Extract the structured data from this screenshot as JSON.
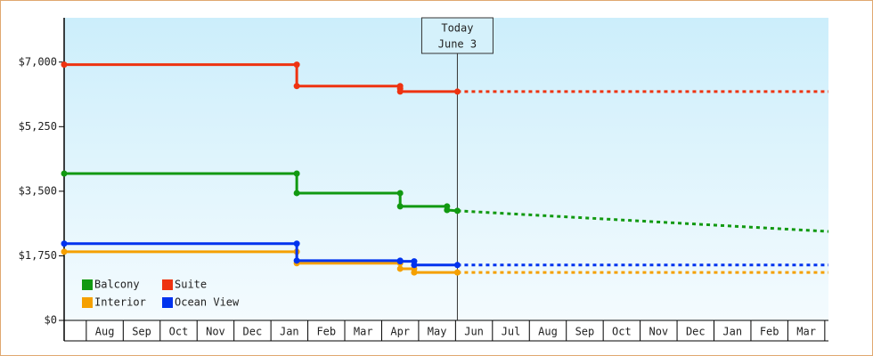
{
  "chart_data": {
    "type": "step-line",
    "series": [
      {
        "name": "Balcony",
        "color": "#119911",
        "x": [
          -0.6,
          5.7,
          5.7,
          8.5,
          8.5,
          9.77,
          9.77,
          10.05
        ],
        "values": [
          3980,
          3980,
          3450,
          3450,
          3090,
          3090,
          2990,
          2970
        ],
        "projection_x": [
          10.05,
          20.1
        ],
        "projection_values": [
          2970,
          2410
        ]
      },
      {
        "name": "Suite",
        "color": "#ee3311",
        "x": [
          -0.6,
          5.7,
          5.7,
          8.5,
          8.5,
          8.5,
          10.05
        ],
        "values": [
          6930,
          6930,
          6350,
          6350,
          6280,
          6200,
          6200
        ],
        "projection_x": [
          10.05,
          20.1
        ],
        "projection_values": [
          6200,
          6200
        ]
      },
      {
        "name": "Interior",
        "color": "#f5a000",
        "x": [
          -0.6,
          5.7,
          5.7,
          8.5,
          8.5,
          8.88,
          8.88,
          10.05
        ],
        "values": [
          1860,
          1860,
          1550,
          1550,
          1400,
          1400,
          1300,
          1300
        ],
        "projection_x": [
          10.05,
          20.1
        ],
        "projection_values": [
          1300,
          1300
        ]
      },
      {
        "name": "Ocean View",
        "color": "#0033ee",
        "x": [
          -0.6,
          5.7,
          5.7,
          8.5,
          8.5,
          8.88,
          8.88,
          10.05
        ],
        "values": [
          2080,
          2080,
          1620,
          1620,
          1600,
          1600,
          1500,
          1500
        ],
        "projection_x": [
          10.05,
          20.1
        ],
        "projection_values": [
          1500,
          1500
        ]
      }
    ],
    "xlim": [
      -0.6,
      20.1
    ],
    "xticks": [
      {
        "value": 0.5,
        "label": "Aug"
      },
      {
        "value": 1.5,
        "label": "Sep"
      },
      {
        "value": 2.5,
        "label": "Oct"
      },
      {
        "value": 3.5,
        "label": "Nov"
      },
      {
        "value": 4.5,
        "label": "Dec"
      },
      {
        "value": 5.5,
        "label": "Jan"
      },
      {
        "value": 6.5,
        "label": "Feb"
      },
      {
        "value": 7.5,
        "label": "Mar"
      },
      {
        "value": 8.5,
        "label": "Apr"
      },
      {
        "value": 9.5,
        "label": "May"
      },
      {
        "value": 10.5,
        "label": "Jun"
      },
      {
        "value": 11.5,
        "label": "Jul"
      },
      {
        "value": 12.5,
        "label": "Aug"
      },
      {
        "value": 13.5,
        "label": "Sep"
      },
      {
        "value": 14.5,
        "label": "Oct"
      },
      {
        "value": 15.5,
        "label": "Nov"
      },
      {
        "value": 16.5,
        "label": "Dec"
      },
      {
        "value": 17.5,
        "label": "Jan"
      },
      {
        "value": 18.5,
        "label": "Feb"
      },
      {
        "value": 19.5,
        "label": "Mar"
      }
    ],
    "ylim": [
      0,
      8200
    ],
    "yticks": [
      {
        "value": 0,
        "label": "$0"
      },
      {
        "value": 1750,
        "label": "$1,750"
      },
      {
        "value": 3500,
        "label": "$3,500"
      },
      {
        "value": 5250,
        "label": "$5,250"
      },
      {
        "value": 7000,
        "label": "$7,000"
      }
    ],
    "today": {
      "x": 10.05,
      "label": [
        "Today",
        "June 3"
      ]
    },
    "legend": "bottom-left"
  }
}
